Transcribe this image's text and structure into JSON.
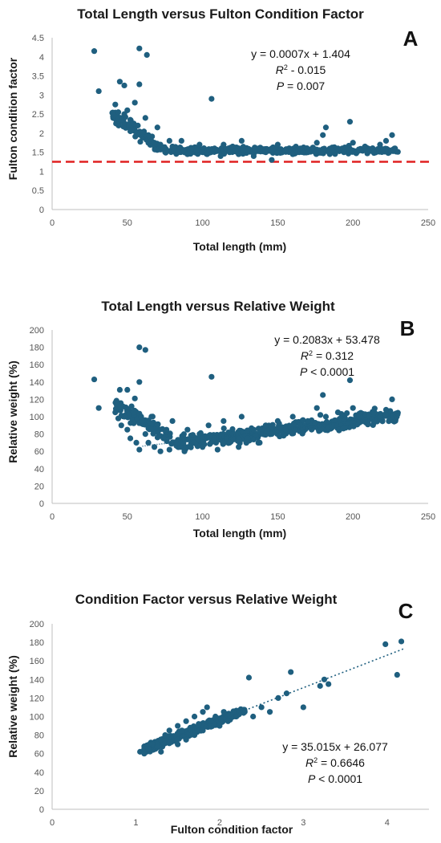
{
  "point_color": "#1f5f7f",
  "ref_line_color": "#e02020",
  "chart_data": [
    {
      "type": "scatter",
      "panel_letter": "A",
      "title": "Total Length versus Fulton Condition Factor",
      "xlabel": "Total length (mm)",
      "ylabel": "Fulton condition factor",
      "xlim": [
        0,
        250
      ],
      "ylim": [
        0,
        4.5
      ],
      "xticks": [
        "0",
        "50",
        "100",
        "150",
        "200",
        "250"
      ],
      "yticks": [
        "0",
        "0.5",
        "1",
        "1.5",
        "2",
        "2.5",
        "3",
        "3.5",
        "4",
        "4.5"
      ],
      "equation": "y = 0.0007x + 1.404",
      "r2_label": "R² - 0.015",
      "r2_prefix": "R",
      "r2_value": " - 0.015",
      "p_prefix": "P",
      "p_value": " = 0.007",
      "reference_line": {
        "y": 1.25,
        "style": "dashed",
        "color": "#e02020"
      },
      "trendline": null,
      "points": [
        [
          28,
          4.15
        ],
        [
          31,
          3.1
        ],
        [
          45,
          3.35
        ],
        [
          48,
          3.25
        ],
        [
          58,
          4.22
        ],
        [
          63,
          4.05
        ],
        [
          58,
          3.28
        ],
        [
          42,
          2.75
        ],
        [
          44,
          2.55
        ],
        [
          46,
          2.35
        ],
        [
          48,
          2.5
        ],
        [
          50,
          2.6
        ],
        [
          52,
          2.35
        ],
        [
          54,
          2.25
        ],
        [
          55,
          2.8
        ],
        [
          57,
          2.2
        ],
        [
          60,
          2.0
        ],
        [
          62,
          2.4
        ],
        [
          64,
          1.95
        ],
        [
          66,
          1.8
        ],
        [
          68,
          1.75
        ],
        [
          70,
          2.15
        ],
        [
          72,
          1.7
        ],
        [
          74,
          1.6
        ],
        [
          76,
          1.55
        ],
        [
          78,
          1.8
        ],
        [
          80,
          1.65
        ],
        [
          84,
          1.5
        ],
        [
          86,
          1.8
        ],
        [
          90,
          1.45
        ],
        [
          93,
          1.6
        ],
        [
          96,
          1.55
        ],
        [
          98,
          1.7
        ],
        [
          100,
          1.5
        ],
        [
          103,
          1.45
        ],
        [
          106,
          2.9
        ],
        [
          108,
          1.6
        ],
        [
          110,
          1.55
        ],
        [
          112,
          1.4
        ],
        [
          114,
          1.7
        ],
        [
          118,
          1.5
        ],
        [
          120,
          1.65
        ],
        [
          124,
          1.45
        ],
        [
          126,
          1.8
        ],
        [
          130,
          1.55
        ],
        [
          134,
          1.4
        ],
        [
          138,
          1.6
        ],
        [
          142,
          1.5
        ],
        [
          146,
          1.3
        ],
        [
          150,
          1.7
        ],
        [
          155,
          1.55
        ],
        [
          160,
          1.45
        ],
        [
          165,
          1.6
        ],
        [
          170,
          1.5
        ],
        [
          176,
          1.75
        ],
        [
          180,
          1.95
        ],
        [
          182,
          2.15
        ],
        [
          186,
          1.55
        ],
        [
          190,
          1.6
        ],
        [
          194,
          1.5
        ],
        [
          198,
          2.3
        ],
        [
          200,
          1.75
        ],
        [
          204,
          1.55
        ],
        [
          208,
          1.65
        ],
        [
          214,
          1.5
        ],
        [
          218,
          1.7
        ],
        [
          222,
          1.8
        ],
        [
          226,
          1.95
        ],
        [
          228,
          1.6
        ]
      ]
    },
    {
      "type": "scatter",
      "panel_letter": "B",
      "title": "Total Length versus Relative Weight",
      "xlabel": "Total length (mm)",
      "ylabel": "Relative weight (%)",
      "xlim": [
        0,
        250
      ],
      "ylim": [
        0,
        200
      ],
      "xticks": [
        "0",
        "50",
        "100",
        "150",
        "200",
        "250"
      ],
      "yticks": [
        "0",
        "20",
        "40",
        "60",
        "80",
        "100",
        "120",
        "140",
        "160",
        "180",
        "200"
      ],
      "equation": "y = 0.2083x + 53.478",
      "r2_label": "R² = 0.312",
      "r2_prefix": "R",
      "r2_value": " = 0.312",
      "p_prefix": "P",
      "p_value": " < 0.0001",
      "reference_line": null,
      "trendline": {
        "slope": 0.2083,
        "intercept": 53.478,
        "x_range": [
          60,
          230
        ]
      },
      "points": [
        [
          28,
          143
        ],
        [
          31,
          110
        ],
        [
          45,
          131
        ],
        [
          50,
          131
        ],
        [
          58,
          180
        ],
        [
          62,
          177
        ],
        [
          58,
          140
        ],
        [
          55,
          121
        ],
        [
          42,
          105
        ],
        [
          44,
          98
        ],
        [
          46,
          90
        ],
        [
          48,
          100
        ],
        [
          50,
          85
        ],
        [
          52,
          75
        ],
        [
          54,
          105
        ],
        [
          56,
          70
        ],
        [
          58,
          62
        ],
        [
          60,
          95
        ],
        [
          62,
          80
        ],
        [
          64,
          70
        ],
        [
          66,
          100
        ],
        [
          68,
          65
        ],
        [
          70,
          90
        ],
        [
          72,
          60
        ],
        [
          74,
          75
        ],
        [
          76,
          85
        ],
        [
          78,
          62
        ],
        [
          80,
          95
        ],
        [
          84,
          70
        ],
        [
          88,
          60
        ],
        [
          90,
          85
        ],
        [
          94,
          70
        ],
        [
          98,
          80
        ],
        [
          100,
          65
        ],
        [
          104,
          90
        ],
        [
          106,
          146
        ],
        [
          108,
          75
        ],
        [
          110,
          62
        ],
        [
          114,
          95
        ],
        [
          118,
          70
        ],
        [
          120,
          80
        ],
        [
          124,
          65
        ],
        [
          126,
          100
        ],
        [
          130,
          75
        ],
        [
          134,
          85
        ],
        [
          138,
          70
        ],
        [
          142,
          90
        ],
        [
          146,
          80
        ],
        [
          150,
          95
        ],
        [
          155,
          85
        ],
        [
          160,
          100
        ],
        [
          165,
          90
        ],
        [
          170,
          95
        ],
        [
          176,
          110
        ],
        [
          180,
          125
        ],
        [
          182,
          100
        ],
        [
          186,
          90
        ],
        [
          190,
          105
        ],
        [
          194,
          95
        ],
        [
          198,
          142
        ],
        [
          200,
          110
        ],
        [
          204,
          100
        ],
        [
          208,
          95
        ],
        [
          214,
          105
        ],
        [
          218,
          100
        ],
        [
          222,
          108
        ],
        [
          226,
          120
        ],
        [
          229,
          100
        ]
      ]
    },
    {
      "type": "scatter",
      "panel_letter": "C",
      "title": "Condition Factor versus Relative Weight",
      "xlabel": "Fulton condition factor",
      "ylabel": "Relative weight (%)",
      "xlim": [
        0,
        4.5
      ],
      "ylim": [
        0,
        200
      ],
      "xticks": [
        "0",
        "1",
        "2",
        "3",
        "4"
      ],
      "yticks": [
        "0",
        "20",
        "40",
        "60",
        "80",
        "100",
        "120",
        "140",
        "160",
        "180",
        "200"
      ],
      "equation": "y = 35.015x + 26.077",
      "r2_label": "R² = 0.6646",
      "r2_prefix": "R",
      "r2_value": " = 0.6646",
      "p_prefix": "P",
      "p_value": " < 0.0001",
      "reference_line": null,
      "trendline": {
        "slope": 35.015,
        "intercept": 26.077,
        "x_range": [
          1.05,
          4.2
        ],
        "style": "dotted"
      },
      "points": [
        [
          1.05,
          62
        ],
        [
          1.1,
          60
        ],
        [
          1.15,
          65
        ],
        [
          1.2,
          70
        ],
        [
          1.25,
          68
        ],
        [
          1.3,
          75
        ],
        [
          1.3,
          62
        ],
        [
          1.35,
          80
        ],
        [
          1.4,
          72
        ],
        [
          1.4,
          85
        ],
        [
          1.45,
          78
        ],
        [
          1.5,
          90
        ],
        [
          1.5,
          70
        ],
        [
          1.55,
          85
        ],
        [
          1.6,
          95
        ],
        [
          1.6,
          75
        ],
        [
          1.65,
          88
        ],
        [
          1.7,
          100
        ],
        [
          1.7,
          80
        ],
        [
          1.75,
          92
        ],
        [
          1.8,
          105
        ],
        [
          1.8,
          85
        ],
        [
          1.85,
          110
        ],
        [
          1.9,
          95
        ],
        [
          1.95,
          100
        ],
        [
          2.0,
          90
        ],
        [
          2.05,
          105
        ],
        [
          2.1,
          95
        ],
        [
          2.2,
          100
        ],
        [
          2.3,
          105
        ],
        [
          2.35,
          142
        ],
        [
          2.4,
          100
        ],
        [
          2.5,
          110
        ],
        [
          2.6,
          105
        ],
        [
          2.7,
          120
        ],
        [
          2.8,
          125
        ],
        [
          2.85,
          148
        ],
        [
          3.0,
          110
        ],
        [
          3.2,
          133
        ],
        [
          3.25,
          140
        ],
        [
          3.3,
          135
        ],
        [
          3.98,
          178
        ],
        [
          4.12,
          145
        ],
        [
          4.17,
          181
        ]
      ]
    }
  ]
}
